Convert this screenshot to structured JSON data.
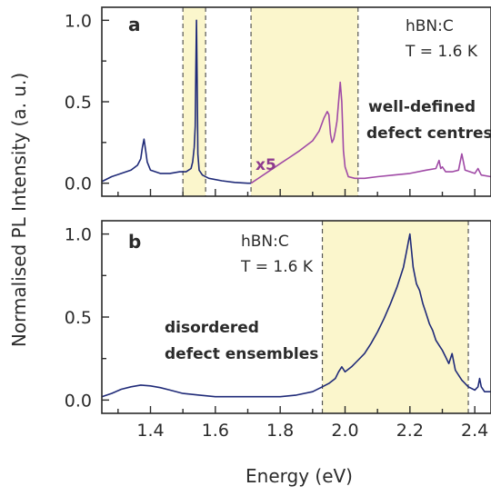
{
  "ylabel": "Normalised PL Intensity (a. u.)",
  "xlabel": "Energy (eV)",
  "colors": {
    "panel_a_left": "#1f2a78",
    "panel_a_right": "#a04aa6",
    "panel_b": "#1f2a78",
    "highlight": "#fbf6cc",
    "dash": "#555555"
  },
  "chart_data": [
    {
      "type": "line",
      "panel": "a",
      "xlim": [
        1.25,
        2.45
      ],
      "ylim": [
        -0.08,
        1.08
      ],
      "x_ticks": [
        "1.4",
        "1.6",
        "1.8",
        "2.0",
        "2.2",
        "2.4"
      ],
      "y_ticks": [
        "0.0",
        "0.5",
        "1.0"
      ],
      "grid": false,
      "annotations": {
        "material": "hBN:C",
        "temperature": "T = 1.6 K",
        "scale": "x5",
        "description_line1": "well-defined",
        "description_line2": "defect centres"
      },
      "highlight_bands": [
        [
          1.5,
          1.57
        ],
        [
          1.71,
          2.04
        ]
      ],
      "dashed_lines": [
        1.5,
        1.57,
        1.71,
        2.04
      ],
      "series": [
        {
          "color_key": "panel_a_left",
          "x": [
            1.25,
            1.28,
            1.31,
            1.34,
            1.36,
            1.37,
            1.375,
            1.38,
            1.385,
            1.39,
            1.4,
            1.43,
            1.46,
            1.49,
            1.51,
            1.525,
            1.53,
            1.535,
            1.538,
            1.54,
            1.542,
            1.544,
            1.546,
            1.55,
            1.56,
            1.58,
            1.62,
            1.66,
            1.7,
            1.71
          ],
          "y": [
            0.01,
            0.04,
            0.06,
            0.08,
            0.11,
            0.15,
            0.22,
            0.27,
            0.2,
            0.13,
            0.08,
            0.06,
            0.06,
            0.07,
            0.07,
            0.09,
            0.13,
            0.22,
            0.35,
            0.7,
            1.0,
            0.6,
            0.18,
            0.08,
            0.05,
            0.03,
            0.015,
            0.005,
            0.0,
            0.0
          ]
        },
        {
          "color_key": "panel_a_right",
          "x": [
            1.71,
            1.74,
            1.77,
            1.8,
            1.83,
            1.86,
            1.88,
            1.9,
            1.92,
            1.935,
            1.945,
            1.95,
            1.955,
            1.96,
            1.965,
            1.97,
            1.975,
            1.98,
            1.985,
            1.99,
            1.995,
            2.0,
            2.01,
            2.03,
            2.06,
            2.1,
            2.15,
            2.2,
            2.25,
            2.28,
            2.29,
            2.295,
            2.3,
            2.31,
            2.33,
            2.35,
            2.355,
            2.36,
            2.365,
            2.37,
            2.4,
            2.41,
            2.42,
            2.45
          ],
          "y": [
            0.0,
            0.04,
            0.08,
            0.12,
            0.16,
            0.2,
            0.23,
            0.26,
            0.32,
            0.4,
            0.44,
            0.42,
            0.3,
            0.25,
            0.27,
            0.32,
            0.38,
            0.5,
            0.62,
            0.5,
            0.2,
            0.1,
            0.04,
            0.03,
            0.03,
            0.04,
            0.05,
            0.06,
            0.08,
            0.09,
            0.14,
            0.09,
            0.1,
            0.07,
            0.07,
            0.08,
            0.13,
            0.18,
            0.13,
            0.08,
            0.06,
            0.09,
            0.05,
            0.04
          ]
        }
      ]
    },
    {
      "type": "line",
      "panel": "b",
      "xlim": [
        1.25,
        2.45
      ],
      "ylim": [
        -0.08,
        1.08
      ],
      "x_ticks": [
        "1.4",
        "1.6",
        "1.8",
        "2.0",
        "2.2",
        "2.4"
      ],
      "y_ticks": [
        "0.0",
        "0.5",
        "1.0"
      ],
      "grid": false,
      "annotations": {
        "material": "hBN:C",
        "temperature": "T = 1.6 K",
        "description_line1": "disordered",
        "description_line2": "defect ensembles"
      },
      "highlight_bands": [
        [
          1.93,
          2.38
        ]
      ],
      "dashed_lines": [
        1.93,
        2.38
      ],
      "series": [
        {
          "color_key": "panel_b",
          "x": [
            1.25,
            1.28,
            1.31,
            1.34,
            1.37,
            1.4,
            1.43,
            1.46,
            1.5,
            1.55,
            1.6,
            1.65,
            1.7,
            1.75,
            1.8,
            1.85,
            1.9,
            1.93,
            1.95,
            1.97,
            1.98,
            1.99,
            2.0,
            2.02,
            2.04,
            2.06,
            2.08,
            2.1,
            2.12,
            2.14,
            2.16,
            2.18,
            2.19,
            2.195,
            2.2,
            2.205,
            2.21,
            2.22,
            2.23,
            2.24,
            2.25,
            2.26,
            2.27,
            2.28,
            2.29,
            2.3,
            2.31,
            2.32,
            2.33,
            2.34,
            2.36,
            2.38,
            2.4,
            2.41,
            2.415,
            2.42,
            2.43,
            2.45
          ],
          "y": [
            0.02,
            0.04,
            0.065,
            0.08,
            0.09,
            0.085,
            0.075,
            0.06,
            0.04,
            0.03,
            0.02,
            0.02,
            0.02,
            0.02,
            0.02,
            0.03,
            0.05,
            0.08,
            0.1,
            0.13,
            0.17,
            0.2,
            0.17,
            0.2,
            0.24,
            0.28,
            0.34,
            0.41,
            0.49,
            0.58,
            0.68,
            0.8,
            0.9,
            0.95,
            1.0,
            0.9,
            0.8,
            0.7,
            0.66,
            0.58,
            0.52,
            0.46,
            0.42,
            0.36,
            0.33,
            0.3,
            0.26,
            0.22,
            0.28,
            0.18,
            0.12,
            0.08,
            0.06,
            0.08,
            0.13,
            0.08,
            0.05,
            0.05
          ]
        }
      ]
    }
  ]
}
